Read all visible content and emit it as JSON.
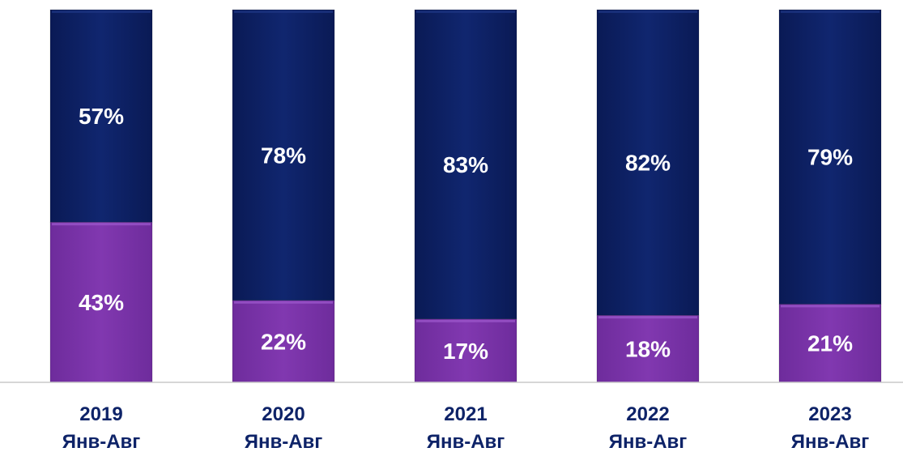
{
  "chart_data": {
    "type": "bar",
    "stacked": true,
    "categories": [
      {
        "year": "2019",
        "period": "Янв-Авг"
      },
      {
        "year": "2020",
        "period": "Янв-Авг"
      },
      {
        "year": "2021",
        "period": "Янв-Авг"
      },
      {
        "year": "2022",
        "period": "Янв-Авг"
      },
      {
        "year": "2023",
        "period": "Янв-Авг"
      }
    ],
    "series": [
      {
        "values": [
          43,
          22,
          17,
          18,
          21
        ],
        "labels": [
          "43%",
          "22%",
          "17%",
          "18%",
          "21%"
        ],
        "color": "#7B35A8"
      },
      {
        "values": [
          57,
          78,
          83,
          82,
          79
        ],
        "labels": [
          "57%",
          "78%",
          "83%",
          "82%",
          "79%"
        ],
        "color": "#0E2368"
      }
    ],
    "ylim": [
      0,
      100
    ],
    "grid": false,
    "legend": "none",
    "title": "",
    "xlabel": "",
    "ylabel": ""
  }
}
